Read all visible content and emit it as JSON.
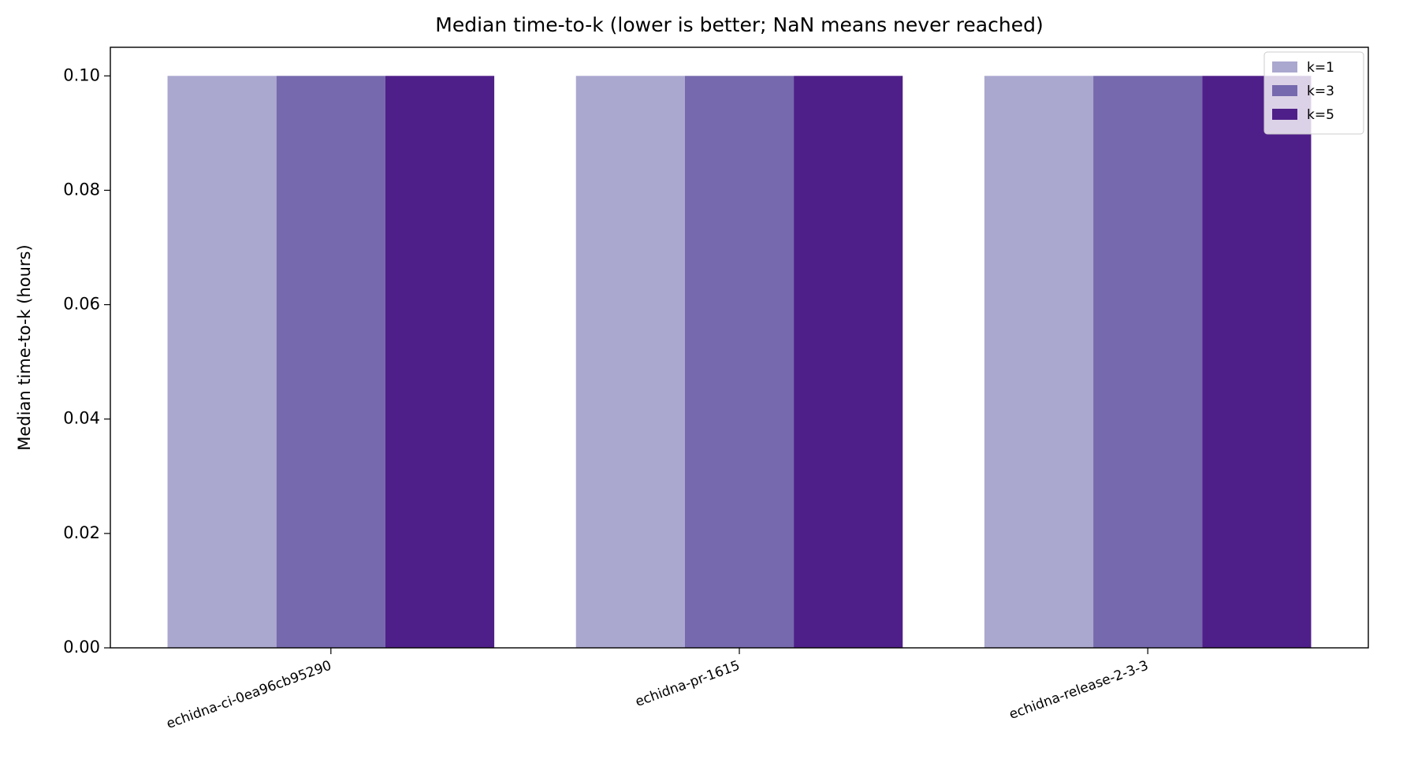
{
  "chart_data": {
    "type": "bar",
    "title": "Median time-to-k (lower is better; NaN means never reached)",
    "y_label": "Median time-to-k (hours)",
    "categories": [
      "echidna-ci-0ea96cb95290",
      "echidna-pr-1615",
      "echidna-release-2-3-3"
    ],
    "series": [
      {
        "name": "k=1",
        "color": "#aaa8cf",
        "values": [
          0.1,
          0.1,
          0.1
        ]
      },
      {
        "name": "k=3",
        "color": "#7669ae",
        "values": [
          0.1,
          0.1,
          0.1
        ]
      },
      {
        "name": "k=5",
        "color": "#4f1f89",
        "values": [
          0.1,
          0.1,
          0.1
        ]
      }
    ],
    "ylim": [
      0,
      0.105
    ],
    "yticks": [
      {
        "value": 0,
        "label": "0.00"
      },
      {
        "value": 0.02,
        "label": "0.02"
      },
      {
        "value": 0.04,
        "label": "0.04"
      },
      {
        "value": 0.06,
        "label": "0.06"
      },
      {
        "value": 0.08,
        "label": "0.08"
      },
      {
        "value": 0.1,
        "label": "0.10"
      }
    ],
    "legend": "upper right"
  }
}
